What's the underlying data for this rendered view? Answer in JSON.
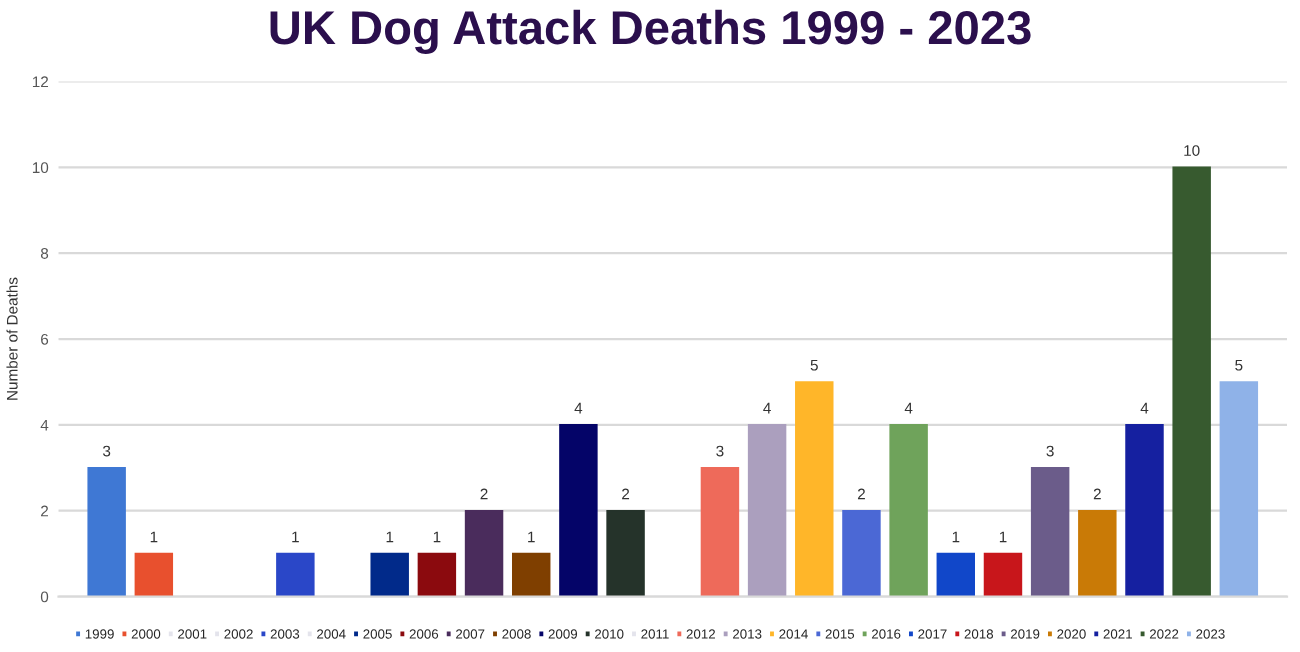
{
  "chart_data": {
    "type": "bar",
    "title": "UK Dog Attack Deaths 1999 - 2023",
    "ylabel": "Number of Deaths",
    "categories": [
      null
    ],
    "series": [
      {
        "name": "1999",
        "color": "#3f78d4",
        "values": [
          3
        ],
        "value_labels": [
          "3"
        ]
      },
      {
        "name": "2000",
        "color": "#e8502e",
        "values": [
          1
        ],
        "value_labels": [
          "1"
        ]
      },
      {
        "name": "2001",
        "color": "#e4e4ec",
        "values": [
          0
        ],
        "value_labels": [
          null
        ]
      },
      {
        "name": "2002",
        "color": "#e4e4ec",
        "values": [
          0
        ],
        "value_labels": [
          null
        ]
      },
      {
        "name": "2003",
        "color": "#2a47c8",
        "values": [
          1
        ],
        "value_labels": [
          "1"
        ]
      },
      {
        "name": "2004",
        "color": "#e4e4ec",
        "values": [
          0
        ],
        "value_labels": [
          null
        ]
      },
      {
        "name": "2005",
        "color": "#012a8a",
        "values": [
          1
        ],
        "value_labels": [
          "1"
        ]
      },
      {
        "name": "2006",
        "color": "#8b0a0e",
        "values": [
          1
        ],
        "value_labels": [
          "1"
        ]
      },
      {
        "name": "2007",
        "color": "#4a2c5c",
        "values": [
          2
        ],
        "value_labels": [
          "2"
        ]
      },
      {
        "name": "2008",
        "color": "#7f3f00",
        "values": [
          1
        ],
        "value_labels": [
          "1"
        ]
      },
      {
        "name": "2009",
        "color": "#040468",
        "values": [
          4
        ],
        "value_labels": [
          "4"
        ]
      },
      {
        "name": "2010",
        "color": "#25332a",
        "values": [
          2
        ],
        "value_labels": [
          "2"
        ]
      },
      {
        "name": "2011",
        "color": "#e4e4ec",
        "values": [
          0
        ],
        "value_labels": [
          null
        ]
      },
      {
        "name": "2012",
        "color": "#ee6a5a",
        "values": [
          3
        ],
        "value_labels": [
          "3"
        ]
      },
      {
        "name": "2013",
        "color": "#ab9fbe",
        "values": [
          4
        ],
        "value_labels": [
          "4"
        ]
      },
      {
        "name": "2014",
        "color": "#ffb629",
        "values": [
          5
        ],
        "value_labels": [
          "5"
        ]
      },
      {
        "name": "2015",
        "color": "#4b68d5",
        "values": [
          2
        ],
        "value_labels": [
          "2"
        ]
      },
      {
        "name": "2016",
        "color": "#6fa35b",
        "values": [
          4
        ],
        "value_labels": [
          "4"
        ]
      },
      {
        "name": "2017",
        "color": "#1147c9",
        "values": [
          1
        ],
        "value_labels": [
          "1"
        ]
      },
      {
        "name": "2018",
        "color": "#c8161b",
        "values": [
          1
        ],
        "value_labels": [
          "1"
        ]
      },
      {
        "name": "2019",
        "color": "#6b5c8a",
        "values": [
          3
        ],
        "value_labels": [
          "3"
        ]
      },
      {
        "name": "2020",
        "color": "#c97a06",
        "values": [
          2
        ],
        "value_labels": [
          "2"
        ]
      },
      {
        "name": "2021",
        "color": "#1520a0",
        "values": [
          4
        ],
        "value_labels": [
          "4"
        ]
      },
      {
        "name": "2022",
        "color": "#375a2f",
        "values": [
          10
        ],
        "value_labels": [
          "10"
        ]
      },
      {
        "name": "2023",
        "color": "#8fb2e8",
        "values": [
          5
        ],
        "value_labels": [
          "5"
        ]
      }
    ],
    "ylim": [
      0,
      12
    ],
    "yticks": [
      0,
      2,
      4,
      6,
      8,
      10,
      12
    ],
    "grid": "y",
    "legend": "bottom"
  }
}
